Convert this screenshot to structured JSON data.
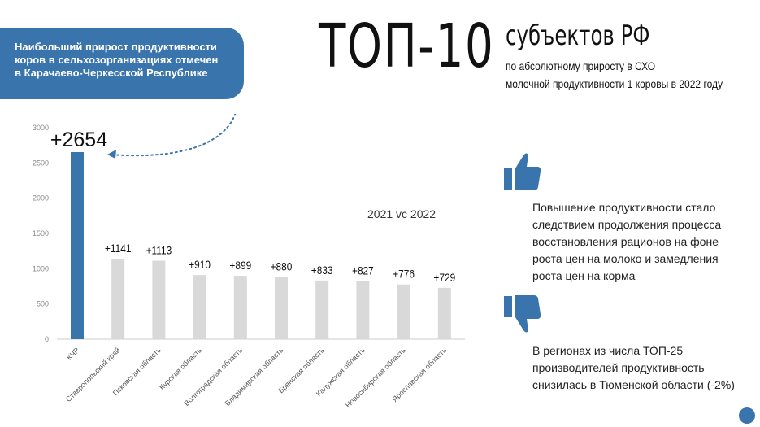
{
  "callout": {
    "lines": [
      "Наибольший прирост продуктивности",
      "коров в сельхозорганизациях отмечен",
      "в Карачаево-Черкесской Республике"
    ]
  },
  "title": {
    "main": "ТОП-10",
    "sub": "субъектов РФ",
    "desc_lines": [
      "по абсолютному приросту в СХО",
      "молочной продуктивности 1 коровы в 2022 году"
    ]
  },
  "chart_data": {
    "type": "bar",
    "categories": [
      "КЧР",
      "Ставропольский край",
      "Псковская область",
      "Курская область",
      "Волгоградская область",
      "Владимирская область",
      "Брянская область",
      "Калужская область",
      "Новосибирская область",
      "Ярославская область"
    ],
    "values": [
      2654,
      1141,
      1113,
      910,
      899,
      880,
      833,
      827,
      776,
      729
    ],
    "value_labels": [
      "+2654",
      "+1141",
      "+1113",
      "+910",
      "+899",
      "+880",
      "+833",
      "+827",
      "+776",
      "+729"
    ],
    "ylim": [
      0,
      3000
    ],
    "yticks": [
      0,
      500,
      1000,
      1500,
      2000,
      2500,
      3000
    ],
    "grid": false,
    "highlight_color": "#3a74ad",
    "bar_color": "#d9d9d9",
    "annotation": "2021 vc 2022"
  },
  "info": {
    "positive_lines": [
      "Повышение продуктивности стало",
      "следствием продолжения процесса",
      "восстановления рационов на фоне",
      "роста цен на молоко и замедления",
      "роста цен на корма"
    ],
    "negative_lines": [
      "В регионах из числа ТОП-25",
      "производителей продуктивность",
      "снизилась в Тюменской области (-2%)"
    ]
  },
  "icons": {
    "positive": "thumbs-up-icon",
    "negative": "thumbs-down-icon",
    "accent": "#3a74ad"
  }
}
